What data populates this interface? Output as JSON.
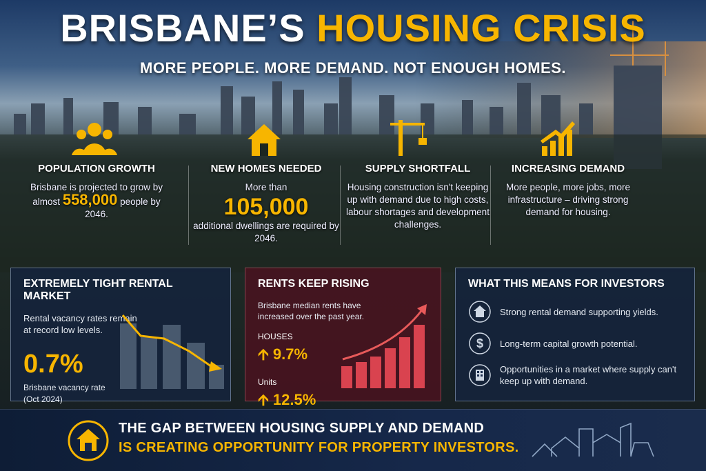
{
  "header": {
    "title_part1": "BRISBANE’S",
    "title_part2": "HOUSING CRISIS",
    "subtitle": "MORE PEOPLE. MORE DEMAND. NOT ENOUGH HOMES."
  },
  "stats": [
    {
      "title": "POPULATION GROWTH",
      "text_before": "Brisbane is projected to grow by almost",
      "highlight": "558,000",
      "text_after": "people by 2046."
    },
    {
      "title": "NEW HOMES NEEDED",
      "text_before": "More than",
      "highlight": "105,000",
      "text_after": "additional dwellings are required by 2046."
    },
    {
      "title": "SUPPLY SHORTFALL",
      "text": "Housing construction isn't keeping up with demand due to high costs, labour shortages and development challenges."
    },
    {
      "title": "INCREASING DEMAND",
      "text": "More people, more jobs, more infrastructure – driving strong demand for housing."
    }
  ],
  "rental": {
    "title": "EXTREMELY TIGHT RENTAL MARKET",
    "text": "Rental vacancy rates remain at record low levels.",
    "value": "0.7%",
    "caption": "Brisbane vacancy rate (Oct 2024)"
  },
  "rents": {
    "title": "RENTS KEEP RISING",
    "text": "Brisbane median rents have increased over the past year.",
    "items": [
      {
        "label": "HOUSES",
        "value": "9.7%"
      },
      {
        "label": "Units",
        "value": "12.5%"
      }
    ]
  },
  "investors": {
    "title": "WHAT THIS MEANS FOR INVESTORS",
    "items": [
      "Strong rental demand supporting yields.",
      "Long-term capital growth potential.",
      "Opportunities in a market where supply can't keep up with demand."
    ]
  },
  "footer": {
    "line1": "THE GAP BETWEEN HOUSING SUPPLY AND DEMAND",
    "line2": "IS CREATING OPPORTUNITY FOR PROPERTY INVESTORS."
  }
}
